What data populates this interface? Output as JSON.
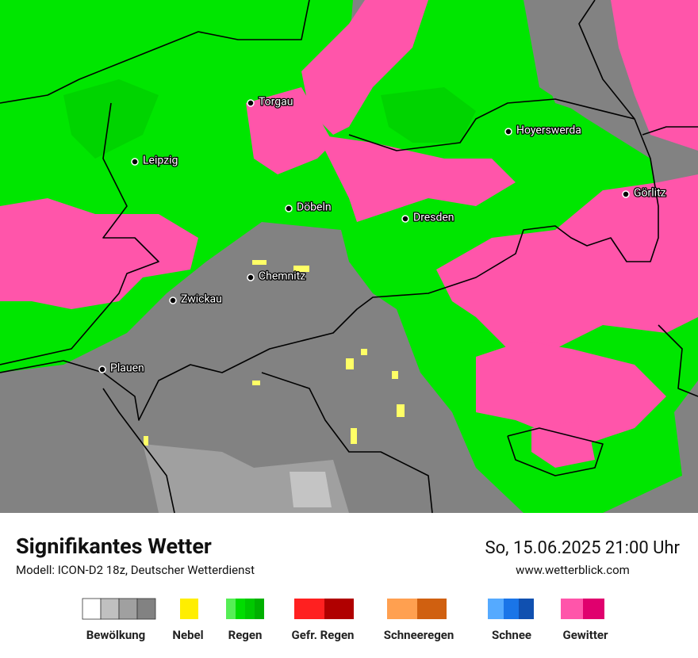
{
  "header": {
    "title": "Signifikantes Wetter",
    "subtitle": "Modell: ICON-D2 18z, Deutscher Wetterdienst",
    "datetime": "So, 15.06.2025 21:00 Uhr",
    "website": "www.wetterblick.com"
  },
  "cities": [
    "Torgau",
    "Leipzig",
    "Döbeln",
    "Dresden",
    "Hoyerswerda",
    "Görlitz",
    "Chemnitz",
    "Zwickau",
    "Plauen"
  ],
  "legend": [
    "Bewölkung",
    "Nebel",
    "Regen",
    "Gefr. Regen",
    "Schneeregen",
    "Schnee",
    "Gewitter"
  ]
}
